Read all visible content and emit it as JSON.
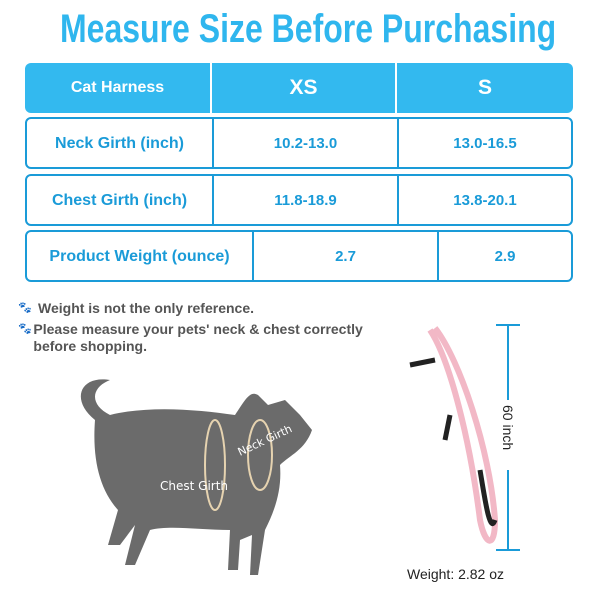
{
  "title": "Measure Size Before Purchasing",
  "table": {
    "headers": [
      "Cat Harness",
      "XS",
      "S"
    ],
    "rows": [
      {
        "label": "Neck Girth (inch)",
        "xs": "10.2-13.0",
        "s": "13.0-16.5"
      },
      {
        "label": "Chest Girth (inch)",
        "xs": "11.8-18.9",
        "s": "13.8-20.1"
      },
      {
        "label": "Product Weight (ounce)",
        "xs": "2.7",
        "s": "2.9"
      }
    ]
  },
  "notes": [
    "Weight is not the only reference.",
    "Please measure your pets' neck & chest correctly before shopping."
  ],
  "diagram": {
    "neck_label": "Neck Girth",
    "chest_label": "Chest Girth",
    "leash_length": "60 inch",
    "weight": "Weight: 2.82 oz"
  },
  "colors": {
    "accent": "#2fb6ee",
    "border": "#1a9bd8",
    "leash": "#f2b8c6",
    "cat": "#6b6b6b"
  }
}
